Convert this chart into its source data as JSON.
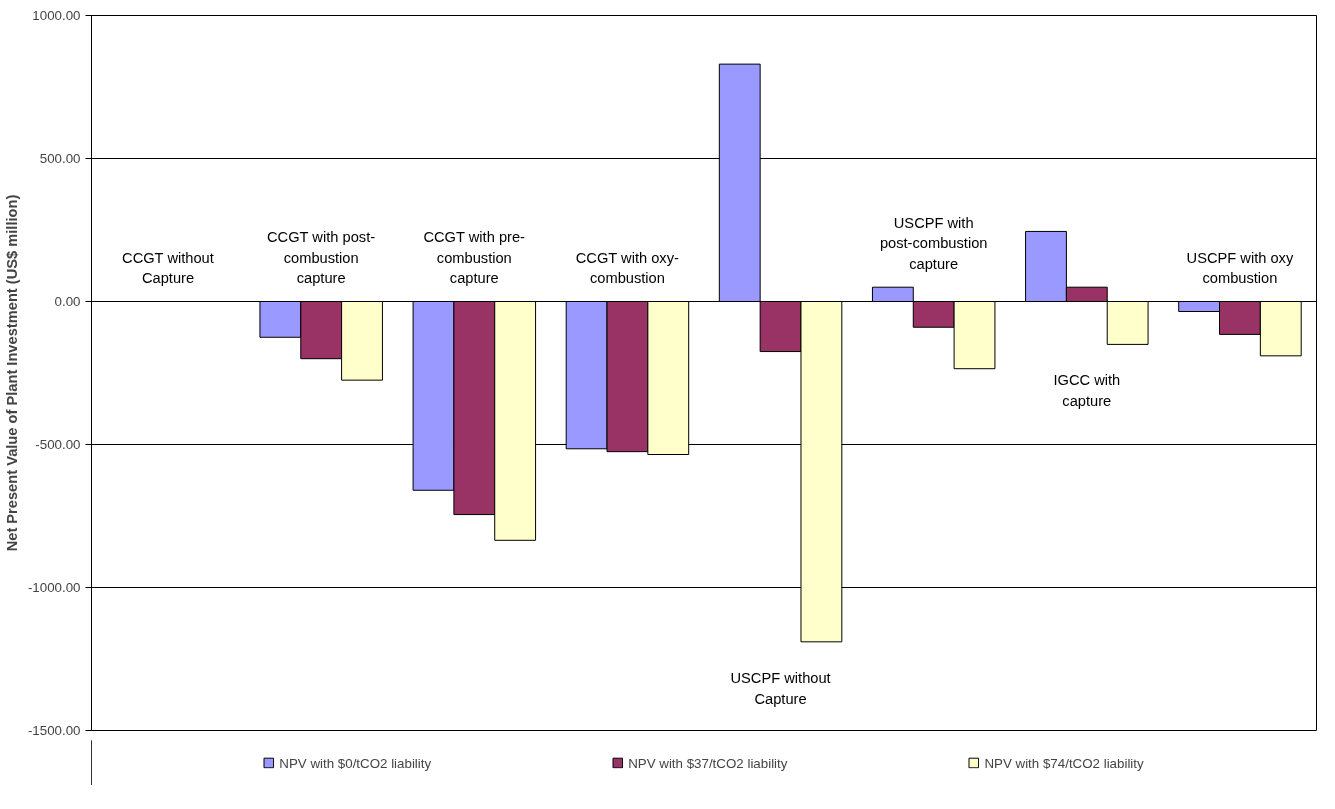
{
  "chart_data": {
    "type": "bar",
    "ylabel": "Net Present Value of Plant Investment (US$ million)",
    "categories": [
      "CCGT without Capture",
      "CCGT with post-combustion capture",
      "CCGT with pre-combustion capture",
      "CCGT with oxy-combustion",
      "USCPF without Capture",
      "USCPF with post-combustion capture",
      "IGCC with capture",
      "USCPF with oxy combustion"
    ],
    "series": [
      {
        "name": "NPV with $0/tCO2 liability",
        "color": "#9999ff",
        "values": [
          null,
          -125,
          -660,
          -515,
          830,
          50,
          245,
          -35
        ]
      },
      {
        "name": "NPV with $37/tCO2 liability",
        "color": "#993366",
        "values": [
          null,
          -200,
          -745,
          -525,
          -175,
          -90,
          50,
          -115
        ]
      },
      {
        "name": "NPV with $74/tCO2 liability",
        "color": "#ffffcc",
        "values": [
          null,
          -275,
          -835,
          -535,
          -1190,
          -235,
          -150,
          -190
        ]
      }
    ],
    "ylim": [
      -1500,
      1000
    ],
    "yticks": [
      {
        "value": -1500,
        "label": "-1500.00"
      },
      {
        "value": -1000,
        "label": "-1000.00"
      },
      {
        "value": -500,
        "label": "-500.00"
      },
      {
        "value": 0,
        "label": "0.00"
      },
      {
        "value": 500,
        "label": "500.00"
      },
      {
        "value": 1000,
        "label": "1000.00"
      }
    ],
    "grid": "y",
    "legend": "bottom"
  }
}
